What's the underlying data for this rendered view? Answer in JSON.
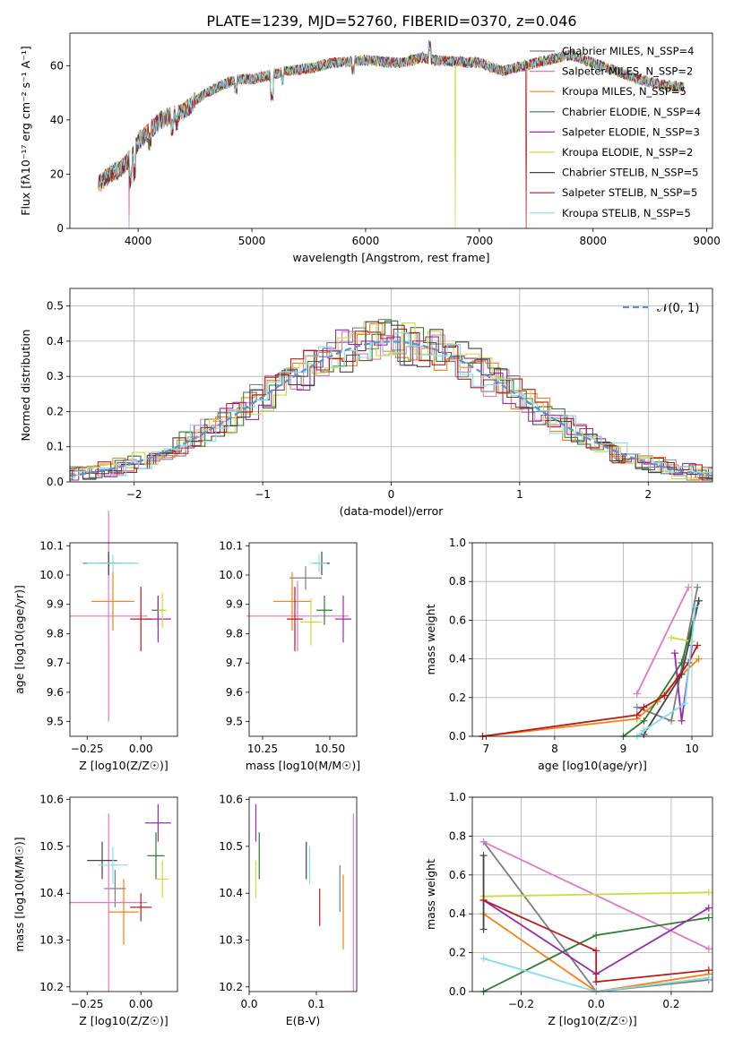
{
  "figure_title": "PLATE=1239, MJD=52760, FIBERID=0370, z=0.046",
  "model_colors": [
    "#7f7f7f",
    "#e377c2",
    "#ff7f0e",
    "#2e7d32",
    "#9c27b0",
    "#cddc39",
    "#424242",
    "#b71c1c",
    "#80deea"
  ],
  "chart_data": [
    {
      "id": "spectrum",
      "type": "line",
      "title": "PLATE=1239, MJD=52760, FIBERID=0370, z=0.046",
      "xlabel": "wavelength [Angstrom, rest frame]",
      "ylabel": "Flux [fλ10⁻¹⁷ erg cm⁻² s⁻¹ A⁻¹]",
      "xlim": [
        3400,
        9050
      ],
      "ylim": [
        0,
        72
      ],
      "xticks": [
        4000,
        5000,
        6000,
        7000,
        8000,
        9000
      ],
      "yticks": [
        0,
        20,
        40,
        60
      ],
      "grid": false,
      "legend_position": "top-right",
      "legend": [
        "Chabrier MILES, N_SSP=4",
        "Salpeter MILES, N_SSP=2",
        "Kroupa MILES, N_SSP=5",
        "Chabrier ELODIE, N_SSP=4",
        "Salpeter ELODIE, N_SSP=3",
        "Kroupa ELODIE, N_SSP=2",
        "Chabrier STELIB, N_SSP=5",
        "Salpeter STELIB, N_SSP=5",
        "Kroupa STELIB, N_SSP=5"
      ],
      "continuum": [
        [
          3650,
          16
        ],
        [
          3750,
          20
        ],
        [
          3850,
          22
        ],
        [
          3950,
          27
        ],
        [
          4000,
          32
        ],
        [
          4100,
          36
        ],
        [
          4200,
          40
        ],
        [
          4300,
          42
        ],
        [
          4400,
          43
        ],
        [
          4500,
          47
        ],
        [
          4600,
          50
        ],
        [
          4700,
          52
        ],
        [
          4800,
          54
        ],
        [
          4900,
          55
        ],
        [
          5000,
          55
        ],
        [
          5100,
          56
        ],
        [
          5200,
          57
        ],
        [
          5300,
          58
        ],
        [
          5500,
          59
        ],
        [
          5700,
          61
        ],
        [
          6000,
          62
        ],
        [
          6300,
          61
        ],
        [
          6500,
          63
        ],
        [
          6600,
          62
        ],
        [
          7000,
          61
        ],
        [
          7200,
          58
        ],
        [
          7400,
          60
        ],
        [
          7600,
          62
        ],
        [
          7800,
          64
        ],
        [
          8000,
          61
        ],
        [
          8200,
          58
        ],
        [
          8400,
          55
        ],
        [
          8600,
          53
        ],
        [
          8800,
          52
        ]
      ],
      "absorption_lines": [
        [
          3933,
          -8
        ],
        [
          3968,
          -8
        ],
        [
          4101,
          -4
        ],
        [
          4300,
          -5
        ],
        [
          4340,
          -3
        ],
        [
          4861,
          -3
        ],
        [
          5175,
          -8
        ],
        [
          5270,
          -3
        ],
        [
          5890,
          -3
        ],
        [
          6563,
          5
        ]
      ],
      "dropouts": [
        [
          3920,
          1
        ],
        [
          6790,
          5
        ],
        [
          7410,
          7
        ]
      ]
    },
    {
      "id": "residuals",
      "type": "histogram",
      "xlabel": "(data-model)/error",
      "ylabel": "Normed distribution",
      "xlim": [
        -2.5,
        2.5
      ],
      "ylim": [
        0,
        0.55
      ],
      "xticks": [
        -2,
        -1,
        0,
        1,
        2
      ],
      "yticks": [
        0.0,
        0.1,
        0.2,
        0.3,
        0.4,
        0.5
      ],
      "grid": true,
      "legend": [
        "𝒩(0, 1)"
      ],
      "legend_position": "top-right",
      "bin_width": 0.1
    },
    {
      "id": "age-vs-Z",
      "type": "scatter",
      "xlabel": "Z [log10(Z/Z☉)]",
      "ylabel": "age  [log10(age/yr)]",
      "xlim": [
        -0.33,
        0.17
      ],
      "ylim": [
        9.45,
        10.11
      ],
      "xticks": [
        -0.25,
        0.0
      ],
      "yticks": [
        9.5,
        9.6,
        9.7,
        9.8,
        9.9,
        10.0,
        10.1
      ],
      "grid": false,
      "points": [
        {
          "x": -0.15,
          "y": 10.04,
          "xerr": 0.12,
          "yerr": 0.03
        },
        {
          "x": -0.15,
          "y": 9.86,
          "xerr": 0.18,
          "yerr": 0.36
        },
        {
          "x": -0.13,
          "y": 9.91,
          "xerr": 0.1,
          "yerr": 0.1
        },
        {
          "x": 0.08,
          "y": 9.88,
          "xerr": 0.03,
          "yerr": 0.05
        },
        {
          "x": 0.08,
          "y": 9.85,
          "xerr": 0.06,
          "yerr": 0.08
        },
        {
          "x": 0.1,
          "y": 9.88,
          "xerr": 0.02,
          "yerr": 0.06
        },
        {
          "x": -0.15,
          "y": 10.04,
          "xerr": 0.05,
          "yerr": 0.04
        },
        {
          "x": 0.0,
          "y": 9.85,
          "xerr": 0.05,
          "yerr": 0.11
        },
        {
          "x": -0.13,
          "y": 10.04,
          "xerr": 0.12,
          "yerr": 0.03
        }
      ]
    },
    {
      "id": "age-vs-mass",
      "type": "scatter",
      "xlabel": "mass [log10(M/M☉)]",
      "ylabel": "",
      "xlim": [
        10.2,
        10.6
      ],
      "ylim": [
        9.45,
        10.11
      ],
      "xticks": [
        10.25,
        10.5
      ],
      "yticks": [
        9.5,
        9.6,
        9.7,
        9.8,
        9.9,
        10.0,
        10.1
      ],
      "grid": false,
      "points": [
        {
          "x": 10.41,
          "y": 9.99,
          "xerr": 0.06,
          "yerr": 0.04
        },
        {
          "x": 10.38,
          "y": 9.86,
          "xerr": 0.19,
          "yerr": 0.12
        },
        {
          "x": 10.36,
          "y": 9.91,
          "xerr": 0.07,
          "yerr": 0.1
        },
        {
          "x": 10.48,
          "y": 9.88,
          "xerr": 0.03,
          "yerr": 0.05
        },
        {
          "x": 10.55,
          "y": 9.85,
          "xerr": 0.03,
          "yerr": 0.08
        },
        {
          "x": 10.43,
          "y": 9.84,
          "xerr": 0.04,
          "yerr": 0.08
        },
        {
          "x": 10.47,
          "y": 10.04,
          "xerr": 0.03,
          "yerr": 0.04
        },
        {
          "x": 10.37,
          "y": 9.85,
          "xerr": 0.03,
          "yerr": 0.11
        },
        {
          "x": 10.46,
          "y": 10.04,
          "xerr": 0.03,
          "yerr": 0.03
        }
      ]
    },
    {
      "id": "weight-vs-age",
      "type": "line",
      "xlabel": "age  [log10(age/yr)]",
      "ylabel": "mass weight",
      "xlim": [
        6.8,
        10.3
      ],
      "ylim": [
        0,
        1.0
      ],
      "xticks": [
        7,
        8,
        9,
        10
      ],
      "yticks": [
        0.0,
        0.2,
        0.4,
        0.6,
        0.8,
        1.0
      ],
      "grid": true,
      "series": [
        {
          "x": [
            9.2,
            9.7,
            10.08
          ],
          "y": [
            0.15,
            0.08,
            0.77
          ]
        },
        {
          "x": [
            9.2,
            9.95
          ],
          "y": [
            0.22,
            0.77
          ]
        },
        {
          "x": [
            6.95,
            9.2,
            9.5,
            9.8,
            10.1
          ],
          "y": [
            0.0,
            0.09,
            0.18,
            0.3,
            0.4
          ]
        },
        {
          "x": [
            9.0,
            9.3,
            9.85,
            10.1
          ],
          "y": [
            0.0,
            0.08,
            0.38,
            0.7
          ]
        },
        {
          "x": [
            9.75,
            9.85,
            10.0
          ],
          "y": [
            0.43,
            0.08,
            0.47
          ]
        },
        {
          "x": [
            9.7,
            10.0
          ],
          "y": [
            0.51,
            0.49
          ]
        },
        {
          "x": [
            9.3,
            9.85,
            10.1
          ],
          "y": [
            0.01,
            0.32,
            0.7
          ]
        },
        {
          "x": [
            6.95,
            9.2,
            9.3,
            9.6,
            9.95,
            10.08
          ],
          "y": [
            0.0,
            0.11,
            0.15,
            0.21,
            0.38,
            0.47
          ]
        },
        {
          "x": [
            9.2,
            9.3,
            9.9,
            10.05
          ],
          "y": [
            0.0,
            0.03,
            0.17,
            0.67
          ]
        }
      ]
    },
    {
      "id": "mass-vs-Z",
      "type": "scatter",
      "xlabel": "Z [log10(Z/Z☉)]",
      "ylabel": "mass [log10(M/M☉)]",
      "xlim": [
        -0.33,
        0.17
      ],
      "ylim": [
        10.19,
        10.605
      ],
      "xticks": [
        -0.25,
        0.0
      ],
      "yticks": [
        10.2,
        10.3,
        10.4,
        10.5,
        10.6
      ],
      "grid": false,
      "points": [
        {
          "x": -0.12,
          "y": 10.41,
          "xerr": 0.05,
          "yerr": 0.04
        },
        {
          "x": -0.15,
          "y": 10.38,
          "xerr": 0.18,
          "yerr": 0.19
        },
        {
          "x": -0.08,
          "y": 10.36,
          "xerr": 0.07,
          "yerr": 0.07
        },
        {
          "x": 0.07,
          "y": 10.48,
          "xerr": 0.04,
          "yerr": 0.05
        },
        {
          "x": 0.08,
          "y": 10.55,
          "xerr": 0.06,
          "yerr": 0.04
        },
        {
          "x": 0.1,
          "y": 10.43,
          "xerr": 0.03,
          "yerr": 0.04
        },
        {
          "x": -0.18,
          "y": 10.47,
          "xerr": 0.07,
          "yerr": 0.04
        },
        {
          "x": 0.0,
          "y": 10.37,
          "xerr": 0.05,
          "yerr": 0.03
        },
        {
          "x": -0.13,
          "y": 10.46,
          "xerr": 0.07,
          "yerr": 0.04
        }
      ]
    },
    {
      "id": "mass-vs-EBV",
      "type": "scatter",
      "xlabel": "E(B-V)",
      "ylabel": "",
      "xlim": [
        0.0,
        0.16
      ],
      "ylim": [
        10.19,
        10.605
      ],
      "xticks": [
        0.0,
        0.1
      ],
      "yticks": [
        10.2,
        10.3,
        10.4,
        10.5,
        10.6
      ],
      "grid": false,
      "points": [
        {
          "x": 0.135,
          "y": 10.41,
          "xerr": 0.0,
          "yerr": 0.05
        },
        {
          "x": 0.155,
          "y": 10.38,
          "xerr": 0.0,
          "yerr": 0.19
        },
        {
          "x": 0.14,
          "y": 10.36,
          "xerr": 0.0,
          "yerr": 0.08
        },
        {
          "x": 0.015,
          "y": 10.48,
          "xerr": 0.0,
          "yerr": 0.05
        },
        {
          "x": 0.01,
          "y": 10.55,
          "xerr": 0.0,
          "yerr": 0.04
        },
        {
          "x": 0.01,
          "y": 10.43,
          "xerr": 0.0,
          "yerr": 0.04
        },
        {
          "x": 0.085,
          "y": 10.47,
          "xerr": 0.0,
          "yerr": 0.04
        },
        {
          "x": 0.105,
          "y": 10.37,
          "xerr": 0.0,
          "yerr": 0.04
        },
        {
          "x": 0.09,
          "y": 10.46,
          "xerr": 0.0,
          "yerr": 0.04
        }
      ]
    },
    {
      "id": "weight-vs-Z",
      "type": "line",
      "xlabel": "Z [log10(Z/Z☉)]",
      "ylabel": "mass weight",
      "xlim": [
        -0.33,
        0.31
      ],
      "ylim": [
        0,
        1.0
      ],
      "xticks": [
        -0.2,
        0.0,
        0.2
      ],
      "yticks": [
        0.0,
        0.2,
        0.4,
        0.6,
        0.8,
        1.0
      ],
      "grid": true,
      "series": [
        {
          "x": [
            -0.3,
            0.0,
            0.3
          ],
          "y": [
            0.77,
            0.0,
            0.06
          ]
        },
        {
          "x": [
            -0.3,
            0.3
          ],
          "y": [
            0.77,
            0.22
          ]
        },
        {
          "x": [
            -0.3,
            0.0,
            0.3
          ],
          "y": [
            0.4,
            0.0,
            0.09
          ]
        },
        {
          "x": [
            -0.3,
            0.0,
            0.3
          ],
          "y": [
            0.0,
            0.29,
            0.38
          ]
        },
        {
          "x": [
            -0.3,
            0.0,
            0.3
          ],
          "y": [
            0.47,
            0.09,
            0.43
          ]
        },
        {
          "x": [
            -0.3,
            0.3
          ],
          "y": [
            0.49,
            0.51
          ]
        },
        {
          "x": [
            -0.3,
            -0.3
          ],
          "y": [
            0.7,
            0.32
          ]
        },
        {
          "x": [
            -0.3,
            0.0,
            0.0,
            0.3
          ],
          "y": [
            0.47,
            0.21,
            0.05,
            0.11
          ]
        },
        {
          "x": [
            -0.3,
            0.0,
            0.3
          ],
          "y": [
            0.17,
            0.0,
            0.07
          ]
        }
      ]
    }
  ]
}
